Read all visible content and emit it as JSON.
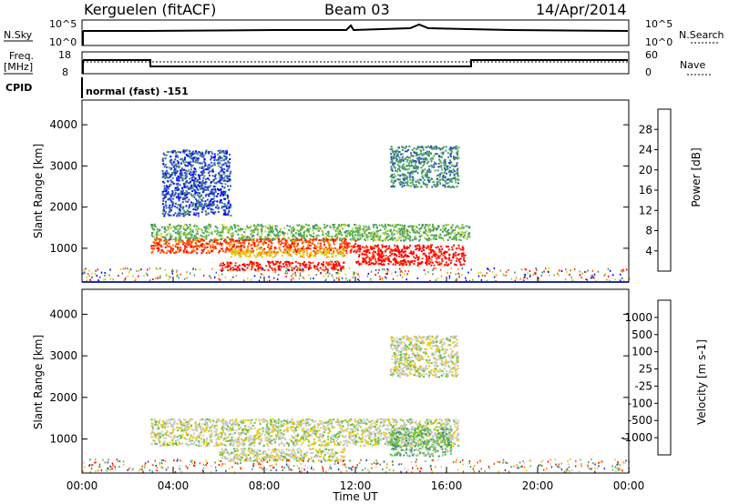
{
  "header": {
    "station": "Kerguelen (fitACF)",
    "beam": "Beam 03",
    "date": "14/Apr/2014"
  },
  "top_panel": {
    "left_label": "N.Sky",
    "left_ticks": [
      "10^5",
      "10^0"
    ],
    "right_label": "N.Search",
    "right_ticks": [
      "10^5",
      "10^0"
    ]
  },
  "freq_panel": {
    "left_label_1": "Freq.",
    "left_label_2": "[MHz]",
    "left_ticks": [
      "18",
      "8"
    ],
    "right_label": "Nave",
    "right_ticks": [
      "60",
      "0"
    ],
    "cpid_label": "CPID",
    "cpid_text": "normal (fast) -151"
  },
  "chart_data": [
    {
      "type": "heatmap",
      "quantity": "Power",
      "ylabel": "Slant Range [km]",
      "xlabel": "Time UT",
      "colorbar_label": "Power [dB]",
      "colorbar_ticks": [
        "28",
        "24",
        "20",
        "16",
        "12",
        "8",
        "4"
      ],
      "colors": [
        "#0000ff",
        "#3050c0",
        "#3f8f6f",
        "#59b44f",
        "#b8d23a",
        "#f0c800",
        "#ff8c00",
        "#ff4000",
        "#ff0000"
      ],
      "yticks": [
        "4000",
        "3000",
        "2000",
        "1000"
      ],
      "ytick_values": [
        4000,
        3000,
        2000,
        1000
      ],
      "ylim": [
        180,
        4600
      ],
      "xlim": [
        0,
        24
      ],
      "regions": [
        {
          "t0": 3.0,
          "t1": 17.0,
          "r0": 1200,
          "r1": 1600,
          "level": 3
        },
        {
          "t0": 3.0,
          "t1": 12.0,
          "r0": 900,
          "r1": 1250,
          "level": 7
        },
        {
          "t0": 6.5,
          "t1": 11.5,
          "r0": 800,
          "r1": 1000,
          "level": 5
        },
        {
          "t0": 6.0,
          "t1": 11.5,
          "r0": 480,
          "r1": 700,
          "level": 8
        },
        {
          "t0": 12.0,
          "t1": 16.8,
          "r0": 600,
          "r1": 1100,
          "level": 8
        },
        {
          "t0": 13.5,
          "t1": 16.5,
          "r0": 2500,
          "r1": 3500,
          "level": 2
        },
        {
          "t0": 3.5,
          "t1": 6.5,
          "r0": 1800,
          "r1": 3400,
          "level": 1
        }
      ]
    },
    {
      "type": "heatmap",
      "quantity": "Velocity",
      "ylabel": "Slant Range [km]",
      "xlabel": "Time UT",
      "colorbar_label": "Velocity [m s-1]",
      "colorbar_ticks": [
        "1000",
        "500",
        "100",
        "25",
        "-25",
        "-100",
        "-500",
        "-1000"
      ],
      "colors": [
        "#2040b0",
        "#3f8f6f",
        "#60c040",
        "#c8c8c8",
        "#f0c800",
        "#ff8c00",
        "#ff4000",
        "#ff0000"
      ],
      "yticks": [
        "4000",
        "3000",
        "2000",
        "1000"
      ],
      "ytick_values": [
        4000,
        3000,
        2000,
        1000
      ],
      "ylim": [
        180,
        4600
      ],
      "xlim": [
        0,
        24
      ],
      "xticks": [
        "00:00",
        "04:00",
        "08:00",
        "12:00",
        "16:00",
        "20:00",
        "00:00"
      ],
      "regions": [
        {
          "t0": 3.0,
          "t1": 16.5,
          "r0": 850,
          "r1": 1500,
          "level": 3
        },
        {
          "t0": 6.0,
          "t1": 11.5,
          "r0": 480,
          "r1": 800,
          "level": 3
        },
        {
          "t0": 13.5,
          "t1": 16.2,
          "r0": 600,
          "r1": 1300,
          "level": 2
        },
        {
          "t0": 13.5,
          "t1": 16.5,
          "r0": 2500,
          "r1": 3500,
          "level": 3
        }
      ]
    }
  ]
}
